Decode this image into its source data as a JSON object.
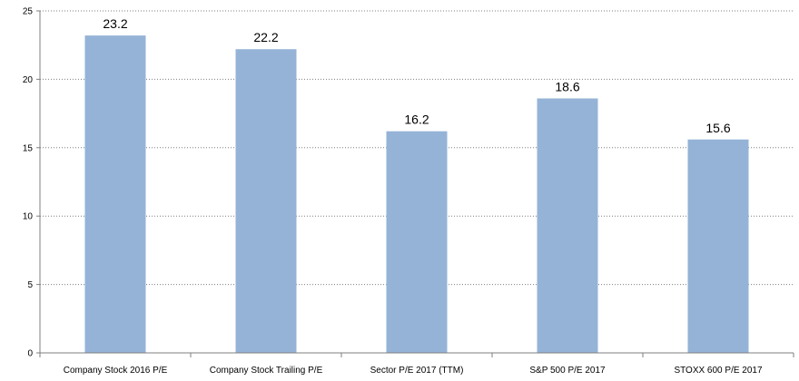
{
  "chart_data": {
    "type": "bar",
    "title": "",
    "xlabel": "",
    "ylabel": "",
    "categories": [
      "Company Stock 2016 P/E",
      "Company Stock Trailing  P/E",
      "Sector P/E 2017 (TTM)",
      "S&P 500 P/E 2017",
      "STOXX 600 P/E 2017"
    ],
    "values": [
      23.2,
      22.2,
      16.2,
      18.6,
      15.6
    ],
    "data_labels": [
      "23.2",
      "22.2",
      "16.2",
      "18.6",
      "15.6"
    ],
    "ylim": [
      0,
      25
    ],
    "yticks": [
      0,
      5,
      10,
      15,
      20,
      25
    ],
    "grid": true,
    "legend": "none",
    "colors": {
      "bar": "#95b3d7",
      "grid": "#7f7f7f",
      "axis": "#7f7f7f"
    }
  }
}
